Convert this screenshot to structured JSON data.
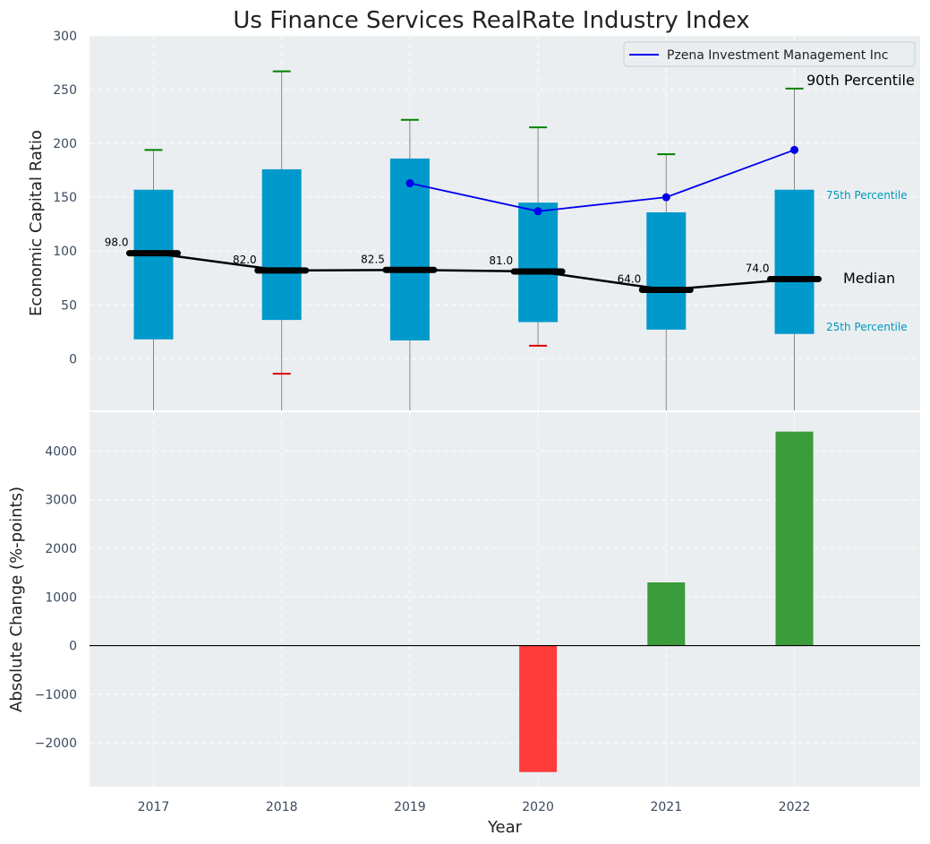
{
  "chart_data": [
    {
      "type": "box",
      "title": "Us Finance Services RealRate Industry Index",
      "ylabel": "Economic Capital Ratio",
      "categories": [
        "2017",
        "2018",
        "2019",
        "2020",
        "2021",
        "2022"
      ],
      "ylim": [
        -48,
        300
      ],
      "yticks": [
        0,
        50,
        100,
        150,
        200,
        250,
        300
      ],
      "grid": true,
      "q25": [
        18,
        36,
        17,
        34,
        27,
        23
      ],
      "q75": [
        157,
        176,
        186,
        145,
        136,
        157
      ],
      "median": [
        98.0,
        82.0,
        82.5,
        81.0,
        64.0,
        74.0
      ],
      "median_labels": [
        "98.0",
        "82.0",
        "82.5",
        "81.0",
        "64.0",
        "74.0"
      ],
      "p90": [
        194,
        267,
        222,
        215,
        190,
        251
      ],
      "p10": [
        null,
        -14,
        null,
        12,
        null,
        null
      ],
      "whisker_low": [
        -48,
        -48,
        -48,
        12,
        -48,
        -48
      ],
      "series": [
        {
          "name": "Pzena Investment Management Inc",
          "values": [
            null,
            null,
            163,
            137,
            150,
            194
          ],
          "color": "#0000ee"
        }
      ],
      "annotations": {
        "p90": "90th Percentile",
        "q75": "75th Percentile",
        "median": "Median",
        "q25": "25th Percentile"
      },
      "legend_position": "top-right"
    },
    {
      "type": "bar",
      "ylabel": "Absolute Change (%-points)",
      "xlabel": "Year",
      "categories": [
        "2017",
        "2018",
        "2019",
        "2020",
        "2021",
        "2022"
      ],
      "values": [
        null,
        null,
        null,
        -2600,
        1300,
        4400
      ],
      "ylim": [
        -2900,
        4800
      ],
      "yticks": [
        -2000,
        -1000,
        0,
        1000,
        2000,
        3000,
        4000
      ],
      "ytick_labels": [
        "−2000",
        "−1000",
        "0",
        "1000",
        "2000",
        "3000",
        "4000"
      ],
      "grid": true
    }
  ],
  "colors": {
    "panel_bg": "#eaeef0",
    "box": "#0099cc",
    "median": "#000000",
    "whisker": "#888888",
    "cap_high": "#008000",
    "cap_low": "#dd0000",
    "pos_bar": "#3a9c3a",
    "neg_bar": "#ff3b3b",
    "annot_q": "#0099bb"
  }
}
